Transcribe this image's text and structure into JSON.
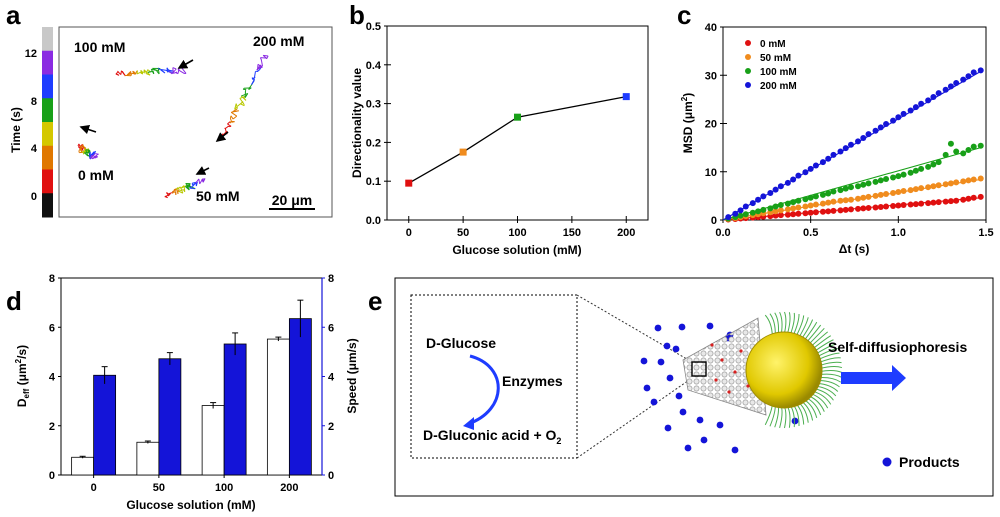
{
  "panels": {
    "a": {
      "label": "a",
      "colorbar": {
        "ylabel": "Time (s)",
        "ticks": [
          "12",
          "8",
          "4",
          "0"
        ],
        "colors": [
          "#c8c8c8",
          "#8a2be2",
          "#1e3cff",
          "#18a018",
          "#d4c800",
          "#e07800",
          "#e01010",
          "#101010"
        ]
      },
      "trajectory_labels": [
        "100 mM",
        "200 mM",
        "0 mM",
        "50 mM"
      ],
      "scale_bar": "20 μm"
    },
    "b": {
      "label": "b"
    },
    "c": {
      "label": "c",
      "xlabel": "Δt (s)",
      "ylabel": "MSD (μm²)"
    },
    "d": {
      "label": "d",
      "ylabel_left": "D",
      "ylabel_left_sub": "eff",
      "ylabel_left_unit": " (μm²/s)",
      "ylabel_right": "Speed (μm/s)"
    },
    "e": {
      "label": "e",
      "reaction_substrate": "D-Glucose",
      "reaction_enzyme": "Enzymes",
      "reaction_product": "D-Gluconic acid + O",
      "reaction_product_sub": "2",
      "mechanism": "Self-diffusiophoresis",
      "legend_products": "Products",
      "colors": {
        "product_dot": "#1414d8",
        "arrow": "#1e3cff",
        "sphere": "#e6d200",
        "tails": "#4caf50"
      }
    }
  },
  "chart_data": [
    {
      "panel": "b",
      "type": "line",
      "title": "",
      "xlabel": "Glucose solution (mM)",
      "ylabel": "Directionality value",
      "x": [
        0,
        50,
        100,
        200
      ],
      "values": [
        0.095,
        0.175,
        0.265,
        0.318
      ],
      "point_colors": [
        "#e01010",
        "#f08c1e",
        "#18a018",
        "#1e3cff"
      ],
      "xlim": [
        -20,
        220
      ],
      "ylim": [
        0,
        0.5
      ],
      "xticks": [
        "0",
        "50",
        "100",
        "150",
        "200"
      ],
      "yticks": [
        "0.0",
        "0.1",
        "0.2",
        "0.3",
        "0.4",
        "0.5"
      ]
    },
    {
      "panel": "c",
      "type": "scatter",
      "xlabel": "Δt (s)",
      "ylabel": "MSD (μm²)",
      "xlim": [
        0,
        1.5
      ],
      "ylim": [
        0,
        40
      ],
      "xticks": [
        "0.0",
        "0.5",
        "1.0",
        "1.5"
      ],
      "yticks": [
        "0",
        "10",
        "20",
        "30",
        "40"
      ],
      "legend_position": "top-left",
      "series": [
        {
          "name": "0 mM",
          "color": "#e01010",
          "fit_end": 4.6,
          "x": [
            0.03,
            0.07,
            0.1,
            0.13,
            0.17,
            0.2,
            0.23,
            0.27,
            0.3,
            0.33,
            0.37,
            0.4,
            0.43,
            0.47,
            0.5,
            0.53,
            0.57,
            0.6,
            0.63,
            0.67,
            0.7,
            0.73,
            0.77,
            0.8,
            0.83,
            0.87,
            0.9,
            0.93,
            0.97,
            1.0,
            1.03,
            1.07,
            1.1,
            1.13,
            1.17,
            1.2,
            1.23,
            1.27,
            1.3,
            1.33,
            1.37,
            1.4,
            1.43,
            1.47
          ],
          "y": [
            0.1,
            0.2,
            0.3,
            0.4,
            0.5,
            0.6,
            0.7,
            0.8,
            0.9,
            1.0,
            1.1,
            1.2,
            1.3,
            1.4,
            1.5,
            1.6,
            1.7,
            1.8,
            1.9,
            2.0,
            2.1,
            2.2,
            2.3,
            2.4,
            2.5,
            2.6,
            2.7,
            2.8,
            2.9,
            3.0,
            3.1,
            3.2,
            3.3,
            3.4,
            3.5,
            3.6,
            3.7,
            3.8,
            3.9,
            4.0,
            4.2,
            4.4,
            4.6,
            4.8
          ]
        },
        {
          "name": "50 mM",
          "color": "#f08c1e",
          "fit_end": 8.4,
          "x": [
            0.03,
            0.07,
            0.1,
            0.13,
            0.17,
            0.2,
            0.23,
            0.27,
            0.3,
            0.33,
            0.37,
            0.4,
            0.43,
            0.47,
            0.5,
            0.53,
            0.57,
            0.6,
            0.63,
            0.67,
            0.7,
            0.73,
            0.77,
            0.8,
            0.83,
            0.87,
            0.9,
            0.93,
            0.97,
            1.0,
            1.03,
            1.07,
            1.1,
            1.13,
            1.17,
            1.2,
            1.23,
            1.27,
            1.3,
            1.33,
            1.37,
            1.4,
            1.43,
            1.47
          ],
          "y": [
            0.2,
            0.4,
            0.6,
            0.8,
            1.0,
            1.2,
            1.4,
            1.6,
            1.8,
            2.0,
            2.2,
            2.4,
            2.6,
            2.8,
            3.0,
            3.2,
            3.4,
            3.6,
            3.8,
            4.0,
            4.1,
            4.2,
            4.4,
            4.6,
            4.8,
            5.0,
            5.2,
            5.4,
            5.6,
            5.8,
            6.0,
            6.2,
            6.4,
            6.6,
            6.8,
            7.0,
            7.2,
            7.4,
            7.6,
            7.8,
            8.0,
            8.2,
            8.4,
            8.6
          ]
        },
        {
          "name": "100 mM",
          "color": "#18a018",
          "fit_end": 15.0,
          "x": [
            0.03,
            0.07,
            0.1,
            0.13,
            0.17,
            0.2,
            0.23,
            0.27,
            0.3,
            0.33,
            0.37,
            0.4,
            0.43,
            0.47,
            0.5,
            0.53,
            0.57,
            0.6,
            0.63,
            0.67,
            0.7,
            0.73,
            0.77,
            0.8,
            0.83,
            0.87,
            0.9,
            0.93,
            0.97,
            1.0,
            1.03,
            1.07,
            1.1,
            1.13,
            1.17,
            1.2,
            1.23,
            1.27,
            1.3,
            1.33,
            1.37,
            1.4,
            1.43,
            1.47
          ],
          "y": [
            0.3,
            0.6,
            0.9,
            1.2,
            1.5,
            1.8,
            2.1,
            2.4,
            2.8,
            3.1,
            3.4,
            3.7,
            4.0,
            4.3,
            4.6,
            4.9,
            5.2,
            5.5,
            5.9,
            6.2,
            6.5,
            6.8,
            7.0,
            7.3,
            7.6,
            7.9,
            8.2,
            8.5,
            8.8,
            9.1,
            9.4,
            9.8,
            10.2,
            10.6,
            11.0,
            11.5,
            12.0,
            13.5,
            15.8,
            14.2,
            13.8,
            14.5,
            15.2,
            15.4
          ]
        },
        {
          "name": "200 mM",
          "color": "#1414d8",
          "fit_end": 30.8,
          "x": [
            0.03,
            0.07,
            0.1,
            0.13,
            0.17,
            0.2,
            0.23,
            0.27,
            0.3,
            0.33,
            0.37,
            0.4,
            0.43,
            0.47,
            0.5,
            0.53,
            0.57,
            0.6,
            0.63,
            0.67,
            0.7,
            0.73,
            0.77,
            0.8,
            0.83,
            0.87,
            0.9,
            0.93,
            0.97,
            1.0,
            1.03,
            1.07,
            1.1,
            1.13,
            1.17,
            1.2,
            1.23,
            1.27,
            1.3,
            1.33,
            1.37,
            1.4,
            1.43,
            1.47
          ],
          "y": [
            0.6,
            1.3,
            2.0,
            2.8,
            3.5,
            4.2,
            4.9,
            5.6,
            6.3,
            7.0,
            7.7,
            8.4,
            9.2,
            9.9,
            10.6,
            11.3,
            12.0,
            12.7,
            13.5,
            14.2,
            14.9,
            15.6,
            16.3,
            17.0,
            17.8,
            18.5,
            19.2,
            19.9,
            20.6,
            21.3,
            22.0,
            22.7,
            23.4,
            24.1,
            24.8,
            25.5,
            26.3,
            27.0,
            27.7,
            28.4,
            29.1,
            29.8,
            30.6,
            31.0
          ]
        }
      ]
    },
    {
      "panel": "d",
      "type": "bar",
      "xlabel": "Glucose solution (mM)",
      "categories": [
        "0",
        "50",
        "100",
        "200"
      ],
      "ylim_left": [
        0,
        8
      ],
      "ylim_right": [
        0,
        8
      ],
      "yticks_left": [
        "0",
        "2",
        "4",
        "6",
        "8"
      ],
      "yticks_right": [
        "0",
        "2",
        "4",
        "6",
        "8"
      ],
      "series": [
        {
          "name": "Deff",
          "axis": "left",
          "fill": "#ffffff",
          "values": [
            0.72,
            1.33,
            2.82,
            5.52
          ],
          "errors": [
            0.04,
            0.05,
            0.12,
            0.08
          ]
        },
        {
          "name": "Speed",
          "axis": "right",
          "fill": "#1414d8",
          "values": [
            4.05,
            4.72,
            5.32,
            6.35
          ],
          "errors": [
            0.35,
            0.25,
            0.45,
            0.75
          ]
        }
      ]
    }
  ]
}
